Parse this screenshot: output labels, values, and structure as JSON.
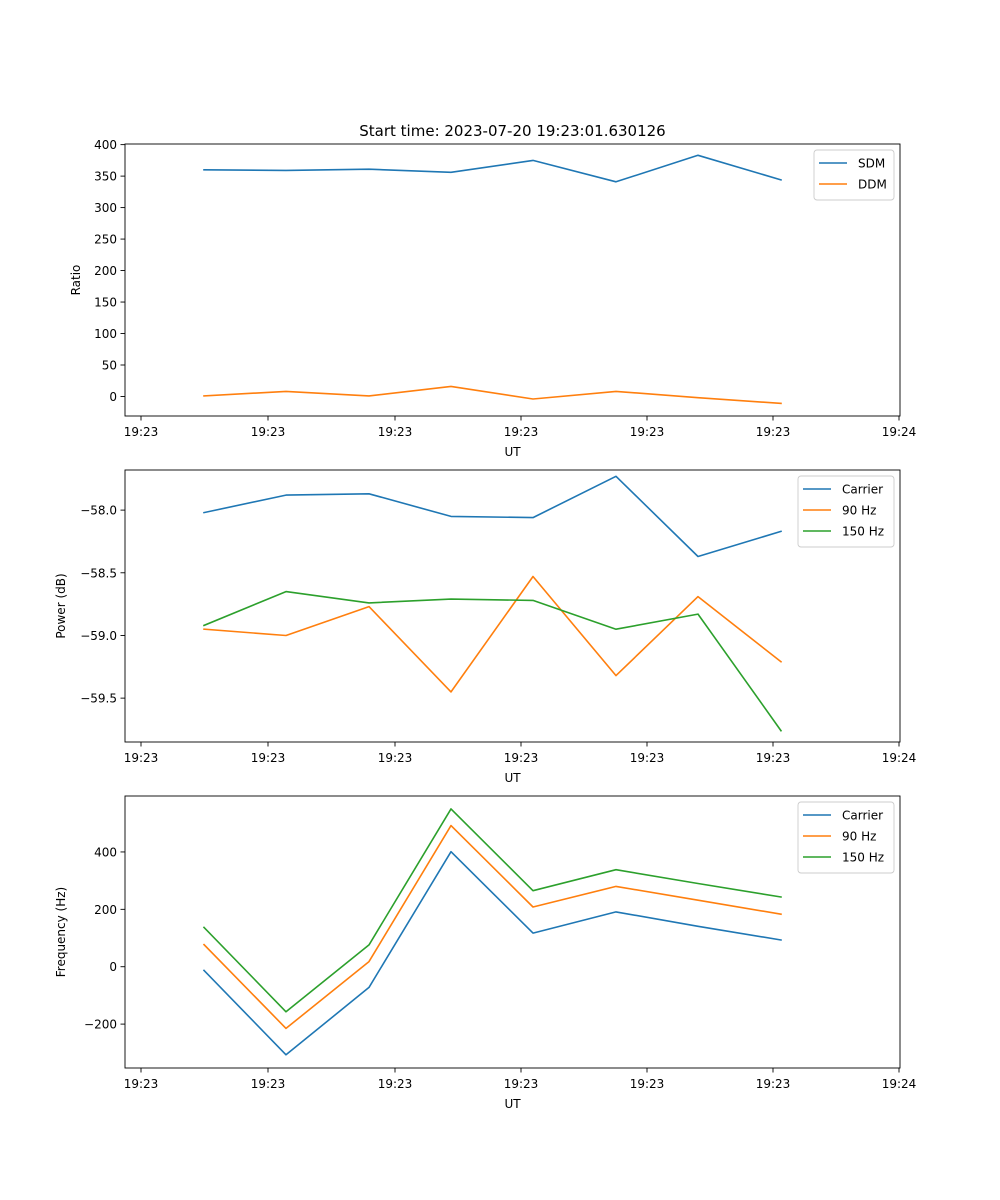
{
  "figure": {
    "title": "Start time: 2023-07-20 19:23:01.630126"
  },
  "chart_data": [
    {
      "type": "line",
      "title": "Start time: 2023-07-20 19:23:01.630126",
      "xlabel": "UT",
      "ylabel": "Ratio",
      "x_tick_labels": [
        "19:23",
        "19:23",
        "19:23",
        "19:23",
        "19:23",
        "19:23",
        "19:24"
      ],
      "y_ticks": [
        0,
        50,
        100,
        150,
        200,
        250,
        300,
        350,
        400
      ],
      "ylim": [
        -31,
        401
      ],
      "legend_position": "top-right",
      "series": [
        {
          "name": "SDM",
          "color": "#1f77b4",
          "values": [
            360,
            359,
            361,
            356,
            375,
            341,
            383,
            344
          ]
        },
        {
          "name": "DDM",
          "color": "#ff7f0e",
          "values": [
            1,
            8,
            1,
            16,
            -4,
            8,
            -2,
            -11
          ]
        }
      ]
    },
    {
      "type": "line",
      "xlabel": "UT",
      "ylabel": "Power (dB)",
      "x_tick_labels": [
        "19:23",
        "19:23",
        "19:23",
        "19:23",
        "19:23",
        "19:23",
        "19:24"
      ],
      "y_ticks": [
        -58.0,
        -58.5,
        -59.0,
        -59.5
      ],
      "y_tick_labels": [
        "−58.0",
        "−58.5",
        "−59.0",
        "−59.5"
      ],
      "ylim": [
        -59.85,
        -57.68
      ],
      "legend_position": "top-right",
      "series": [
        {
          "name": "Carrier",
          "color": "#1f77b4",
          "values": [
            -58.02,
            -57.88,
            -57.87,
            -58.05,
            -58.06,
            -57.73,
            -58.37,
            -58.17
          ]
        },
        {
          "name": "90 Hz",
          "color": "#ff7f0e",
          "values": [
            -58.95,
            -59.0,
            -58.77,
            -59.45,
            -58.53,
            -59.32,
            -58.69,
            -59.21
          ]
        },
        {
          "name": "150 Hz",
          "color": "#2ca02c",
          "values": [
            -58.92,
            -58.65,
            -58.74,
            -58.71,
            -58.72,
            -58.95,
            -58.83,
            -59.76
          ]
        }
      ]
    },
    {
      "type": "line",
      "xlabel": "UT",
      "ylabel": "Frequency (Hz)",
      "x_tick_labels": [
        "19:23",
        "19:23",
        "19:23",
        "19:23",
        "19:23",
        "19:23",
        "19:24"
      ],
      "y_ticks": [
        -200,
        0,
        200,
        400
      ],
      "y_tick_labels": [
        "−200",
        "0",
        "200",
        "400"
      ],
      "ylim": [
        -353,
        595
      ],
      "legend_position": "top-right",
      "series": [
        {
          "name": "Carrier",
          "color": "#1f77b4",
          "values": [
            -13,
            -307,
            -72,
            401,
            117,
            191,
            141,
            93
          ]
        },
        {
          "name": "90 Hz",
          "color": "#ff7f0e",
          "values": [
            77,
            -215,
            18,
            492,
            208,
            280,
            232,
            183
          ]
        },
        {
          "name": "150 Hz",
          "color": "#2ca02c",
          "values": [
            137,
            -157,
            76,
            550,
            265,
            338,
            290,
            243
          ]
        }
      ]
    }
  ]
}
